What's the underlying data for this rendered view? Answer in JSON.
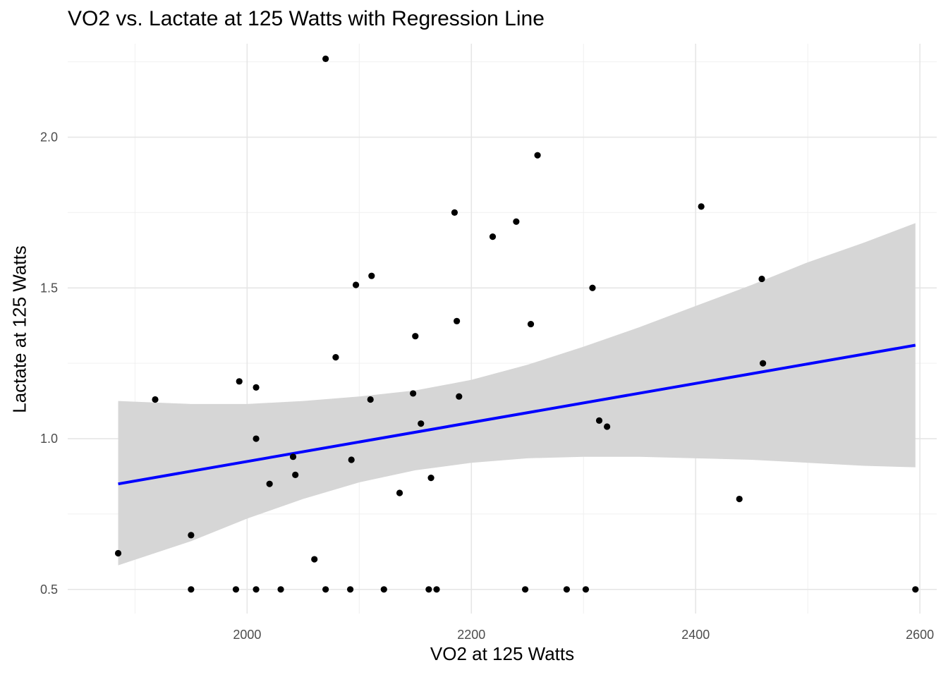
{
  "chart_data": {
    "type": "scatter",
    "title": "VO2 vs. Lactate at 125 Watts with Regression Line",
    "xlabel": "VO2 at 125 Watts",
    "ylabel": "Lactate at 125 Watts",
    "xlim": [
      1840,
      2615
    ],
    "ylim": [
      0.42,
      2.31
    ],
    "x_ticks": [
      2000,
      2200,
      2400,
      2600
    ],
    "y_ticks": [
      0.5,
      1.0,
      1.5,
      2.0
    ],
    "x_tick_labels": [
      "2000",
      "2200",
      "2400",
      "2600"
    ],
    "y_tick_labels": [
      "0.5",
      "1.0",
      "1.5",
      "2.0"
    ],
    "grid": true,
    "point_color": "#000000",
    "line_color": "#0000ff",
    "band_color": "#d6d6d6",
    "points": [
      {
        "x": 1885,
        "y": 0.62
      },
      {
        "x": 1918,
        "y": 1.13
      },
      {
        "x": 1950,
        "y": 0.68
      },
      {
        "x": 1950,
        "y": 0.5
      },
      {
        "x": 1990,
        "y": 0.5
      },
      {
        "x": 1993,
        "y": 1.19
      },
      {
        "x": 2008,
        "y": 1.17
      },
      {
        "x": 2008,
        "y": 1.0
      },
      {
        "x": 2008,
        "y": 0.5
      },
      {
        "x": 2020,
        "y": 0.85
      },
      {
        "x": 2030,
        "y": 0.5
      },
      {
        "x": 2041,
        "y": 0.94
      },
      {
        "x": 2043,
        "y": 0.88
      },
      {
        "x": 2060,
        "y": 0.6
      },
      {
        "x": 2070,
        "y": 2.26
      },
      {
        "x": 2070,
        "y": 0.5
      },
      {
        "x": 2079,
        "y": 1.27
      },
      {
        "x": 2092,
        "y": 0.5
      },
      {
        "x": 2093,
        "y": 0.93
      },
      {
        "x": 2097,
        "y": 1.51
      },
      {
        "x": 2110,
        "y": 1.13
      },
      {
        "x": 2111,
        "y": 1.54
      },
      {
        "x": 2122,
        "y": 0.5
      },
      {
        "x": 2136,
        "y": 0.82
      },
      {
        "x": 2148,
        "y": 1.15
      },
      {
        "x": 2150,
        "y": 1.34
      },
      {
        "x": 2155,
        "y": 1.05
      },
      {
        "x": 2162,
        "y": 0.5
      },
      {
        "x": 2164,
        "y": 0.87
      },
      {
        "x": 2169,
        "y": 0.5
      },
      {
        "x": 2185,
        "y": 1.75
      },
      {
        "x": 2187,
        "y": 1.39
      },
      {
        "x": 2189,
        "y": 1.14
      },
      {
        "x": 2219,
        "y": 1.67
      },
      {
        "x": 2240,
        "y": 1.72
      },
      {
        "x": 2248,
        "y": 0.5
      },
      {
        "x": 2253,
        "y": 1.38
      },
      {
        "x": 2259,
        "y": 1.94
      },
      {
        "x": 2285,
        "y": 0.5
      },
      {
        "x": 2302,
        "y": 0.5
      },
      {
        "x": 2308,
        "y": 1.5
      },
      {
        "x": 2314,
        "y": 1.06
      },
      {
        "x": 2321,
        "y": 1.04
      },
      {
        "x": 2405,
        "y": 1.77
      },
      {
        "x": 2439,
        "y": 0.8
      },
      {
        "x": 2459,
        "y": 1.53
      },
      {
        "x": 2460,
        "y": 1.25
      },
      {
        "x": 2596,
        "y": 0.5
      }
    ],
    "regression_line": [
      {
        "x": 1885,
        "y": 0.85
      },
      {
        "x": 2596,
        "y": 1.31
      }
    ],
    "confidence_band": {
      "x": [
        1885,
        1950,
        2000,
        2050,
        2100,
        2150,
        2200,
        2250,
        2300,
        2350,
        2400,
        2450,
        2500,
        2550,
        2596
      ],
      "upper": [
        1.125,
        1.115,
        1.115,
        1.125,
        1.14,
        1.16,
        1.195,
        1.245,
        1.305,
        1.37,
        1.44,
        1.51,
        1.585,
        1.65,
        1.715
      ],
      "lower": [
        0.58,
        0.66,
        0.735,
        0.8,
        0.855,
        0.895,
        0.92,
        0.935,
        0.94,
        0.94,
        0.935,
        0.93,
        0.92,
        0.91,
        0.905
      ]
    }
  }
}
